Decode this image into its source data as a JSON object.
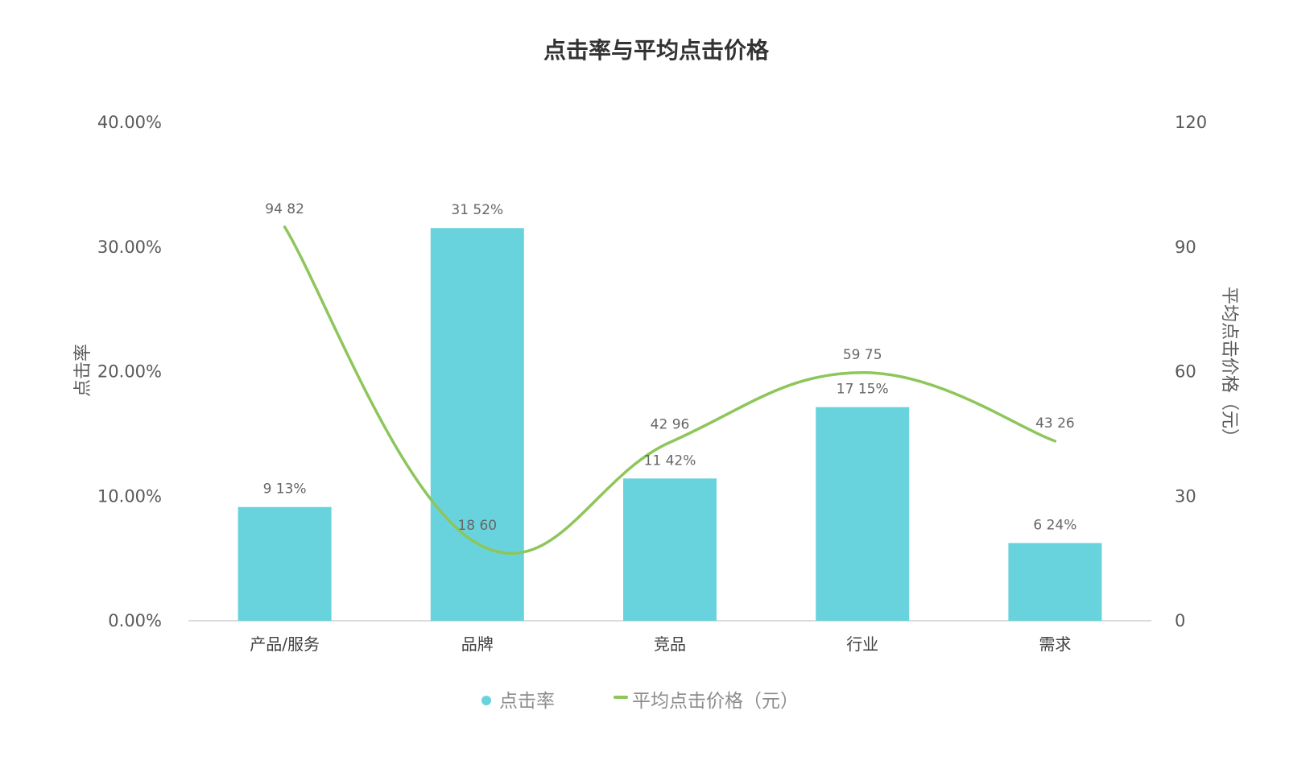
{
  "chart_data": {
    "type": "bar",
    "title": "点击率与平均点击价格",
    "categories": [
      "产品/服务",
      "品牌",
      "竞品",
      "行业",
      "需求"
    ],
    "series": [
      {
        "name": "点击率",
        "type": "bar",
        "axis": "left",
        "color": "#69d3dd",
        "values": [
          9.13,
          31.52,
          11.42,
          17.15,
          6.24
        ],
        "labels": [
          "9 13%",
          "31 52%",
          "11 42%",
          "17 15%",
          "6 24%"
        ]
      },
      {
        "name": "平均点击价格（元）",
        "type": "line",
        "smooth": true,
        "axis": "right",
        "color": "#8dc65a",
        "values": [
          94.82,
          18.6,
          42.96,
          59.75,
          43.26
        ],
        "labels": [
          "94 82",
          "18 60",
          "42 96",
          "59 75",
          "43 26"
        ]
      }
    ],
    "y_left": {
      "label": "点击率",
      "range": [
        0,
        40
      ],
      "ticks": [
        "0.00%",
        "10.00%",
        "20.00%",
        "30.00%",
        "40.00%"
      ]
    },
    "y_right": {
      "label": "平均点击价格（元）",
      "range": [
        0,
        120
      ],
      "ticks": [
        "0",
        "30",
        "60",
        "90",
        "120"
      ]
    },
    "grid": false,
    "legend": {
      "position": "bottom",
      "items": [
        "点击率",
        "平均点击价格（元）"
      ]
    }
  }
}
